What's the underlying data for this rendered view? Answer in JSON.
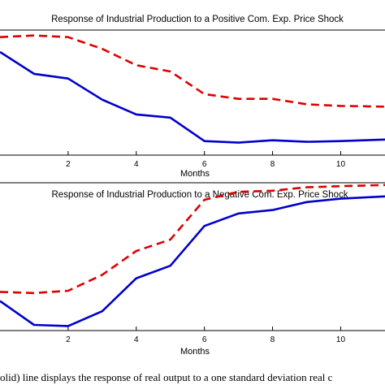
{
  "chart_data": [
    {
      "type": "line",
      "title": "Response of Industrial Production to a Positive Com. Exp. Price Shock",
      "xlabel": "Months",
      "ylabel": "",
      "x": [
        0,
        1,
        2,
        3,
        4,
        5,
        6,
        7,
        8,
        9,
        10,
        11.3
      ],
      "xlim": [
        0,
        11.3
      ],
      "xticks": [
        2,
        4,
        6,
        8,
        10
      ],
      "xtick_labels": [
        "2",
        "4",
        "6",
        "8",
        "10"
      ],
      "ylim": [
        -0.6,
        1.0
      ],
      "grid": false,
      "series": [
        {
          "style": "solid",
          "color": "#0000cc",
          "values": [
            0.72,
            0.44,
            0.38,
            0.11,
            -0.08,
            -0.12,
            -0.42,
            -0.44,
            -0.41,
            -0.43,
            -0.42,
            -0.4
          ]
        },
        {
          "style": "dashed",
          "color": "#dd0000",
          "values": [
            0.91,
            0.93,
            0.91,
            0.76,
            0.55,
            0.47,
            0.18,
            0.12,
            0.12,
            0.05,
            0.03,
            0.02
          ]
        }
      ]
    },
    {
      "type": "line",
      "title": "Response of Industrial Production to a Negative Com. Exp. Price Shock",
      "xlabel": "Months",
      "ylabel": "",
      "x": [
        0,
        1,
        2,
        3,
        4,
        5,
        6,
        7,
        8,
        9,
        10,
        11.3
      ],
      "xlim": [
        0,
        11.3
      ],
      "xticks": [
        2,
        4,
        6,
        8,
        10
      ],
      "xtick_labels": [
        "2",
        "4",
        "6",
        "8",
        "10"
      ],
      "ylim": [
        -1.2,
        0.1
      ],
      "grid": false,
      "series": [
        {
          "style": "solid",
          "color": "#0000cc",
          "values": [
            -0.94,
            -1.15,
            -1.16,
            -1.03,
            -0.74,
            -0.63,
            -0.28,
            -0.17,
            -0.14,
            -0.07,
            -0.04,
            -0.02
          ]
        },
        {
          "style": "dashed",
          "color": "#dd0000",
          "values": [
            -0.86,
            -0.87,
            -0.85,
            -0.71,
            -0.5,
            -0.4,
            -0.05,
            0.02,
            0.03,
            0.06,
            0.07,
            0.08
          ]
        }
      ]
    }
  ],
  "caption": "olid) line displays the response of real output to a one standard deviation real c"
}
